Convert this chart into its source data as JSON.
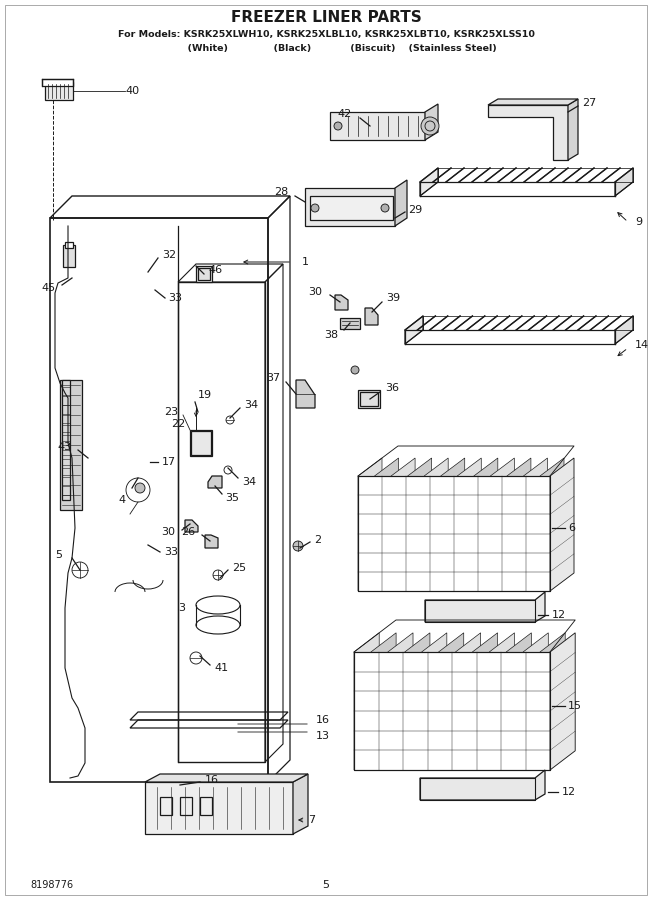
{
  "title": "FREEZER LINER PARTS",
  "subtitle1": "For Models: KSRK25XLWH10, KSRK25XLBL10, KSRK25XLBT10, KSRK25XLSS10",
  "subtitle2": "          (White)              (Black)            (Biscuit)    (Stainless Steel)",
  "doc_number": "8198776",
  "page_number": "5",
  "bg_color": "#ffffff",
  "line_color": "#1a1a1a"
}
